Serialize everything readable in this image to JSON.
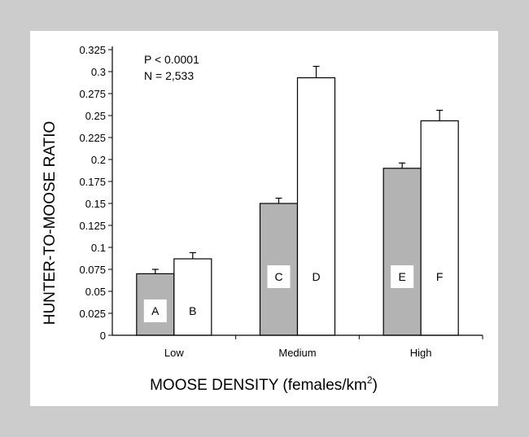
{
  "chart_data": {
    "type": "bar",
    "title": "",
    "ylabel": "HUNTER-TO-MOOSE RATIO",
    "xlabel": "MOOSE DENSITY (females/km",
    "xlabel_superscript": "2",
    "xlabel_suffix": ")",
    "categories": [
      "Low",
      "Medium",
      "High"
    ],
    "ylim": [
      0,
      0.325
    ],
    "yticks": [
      "0",
      "0.025",
      "0.05",
      "0.075",
      "0.1",
      "0.125",
      "0.15",
      "0.175",
      "0.2",
      "0.225",
      "0.25",
      "0.275",
      "0.3",
      "0.325"
    ],
    "annotations": [
      "P < 0.0001",
      "N = 2,533"
    ],
    "grid": false,
    "series": [
      {
        "color": "#b3b3b3",
        "values": [
          0.07,
          0.15,
          0.19
        ],
        "errors": [
          0.005,
          0.006,
          0.006
        ],
        "bar_labels": [
          "A",
          "C",
          "E"
        ]
      },
      {
        "color": "#ffffff",
        "values": [
          0.087,
          0.293,
          0.244
        ],
        "errors": [
          0.007,
          0.013,
          0.012
        ],
        "bar_labels": [
          "B",
          "D",
          "F"
        ]
      }
    ]
  }
}
